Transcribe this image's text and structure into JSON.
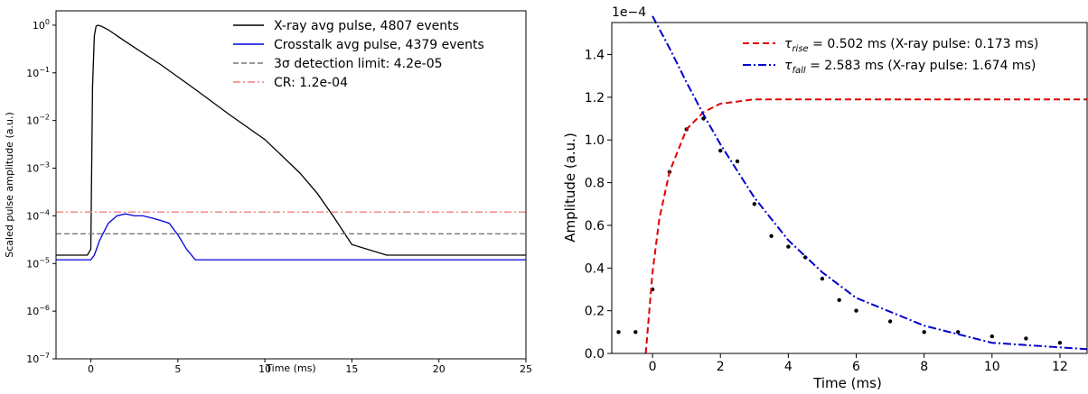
{
  "chart_data": [
    {
      "type": "line",
      "xlabel": "Time (ms)",
      "ylabel": "Scaled pulse amplitude (a.u.)",
      "xlim": [
        -2,
        25
      ],
      "ylim": [
        1e-07,
        2
      ],
      "yscale": "log",
      "grid": false,
      "legend_position": "top-right",
      "x_ticks": [
        "0",
        "5",
        "10",
        "15",
        "20",
        "25"
      ],
      "y_ticks": [
        "10^0",
        "10^-1",
        "10^-2",
        "10^-3",
        "10^-4",
        "10^-5",
        "10^-6",
        "10^-7"
      ],
      "series": [
        {
          "name": "X-ray avg pulse, 4807 events",
          "color": "#000000",
          "x": [
            -2,
            -0.2,
            0.0,
            0.1,
            0.2,
            0.3,
            0.4,
            0.6,
            1,
            2,
            4,
            6,
            8,
            10,
            12,
            13,
            14,
            15,
            17,
            20,
            25
          ],
          "y": [
            1.5e-05,
            1.5e-05,
            2e-05,
            0.05,
            0.6,
            0.95,
            1.0,
            0.95,
            0.8,
            0.45,
            0.15,
            0.045,
            0.013,
            0.004,
            0.0008,
            0.0003,
            9e-05,
            2.5e-05,
            1.5e-05,
            1.5e-05,
            1.5e-05
          ]
        },
        {
          "name": "Crosstalk avg pulse, 4379 events",
          "color": "#0000dd",
          "x": [
            -2,
            0.0,
            0.2,
            0.5,
            1.0,
            1.5,
            2.0,
            2.5,
            3.0,
            3.5,
            4.0,
            4.5,
            5.0,
            5.5,
            6.0,
            8,
            10,
            15,
            20,
            25
          ],
          "y": [
            1.2e-05,
            1.2e-05,
            1.5e-05,
            3e-05,
            7e-05,
            0.0001,
            0.00011,
            0.0001,
            0.0001,
            9e-05,
            8e-05,
            7e-05,
            4e-05,
            2e-05,
            1.2e-05,
            1.2e-05,
            1.2e-05,
            1.2e-05,
            1.2e-05,
            1.2e-05
          ]
        },
        {
          "name": "3σ detection limit: 4.2e-05",
          "color": "#777777",
          "y": 4.2e-05
        },
        {
          "name": "CR: 1.2e-04",
          "color": "#f08080",
          "y": 0.00012
        }
      ]
    },
    {
      "type": "scatter",
      "xlabel": "Time (ms)",
      "ylabel": "Amplitude (a.u.)",
      "offset_text": "1e−4",
      "xlim": [
        -1.2,
        12.8
      ],
      "ylim": [
        0,
        1.55
      ],
      "grid": false,
      "legend_position": "top-right",
      "x_ticks": [
        "0",
        "2",
        "4",
        "6",
        "8",
        "10",
        "12"
      ],
      "y_ticks": [
        "0.0",
        "0.2",
        "0.4",
        "0.6",
        "0.8",
        "1.0",
        "1.2",
        "1.4"
      ],
      "data_points": {
        "color": "#000000",
        "x": [
          -1.0,
          -0.5,
          0.0,
          0.5,
          1.0,
          1.5,
          2.0,
          2.5,
          3.0,
          3.5,
          4.0,
          4.5,
          5.0,
          5.5,
          6.0,
          7.0,
          8.0,
          9.0,
          10.0,
          11.0,
          12.0
        ],
        "y": [
          0.1,
          0.1,
          0.3,
          0.85,
          1.05,
          1.1,
          0.95,
          0.9,
          0.7,
          0.55,
          0.5,
          0.45,
          0.35,
          0.25,
          0.2,
          0.15,
          0.1,
          0.1,
          0.08,
          0.07,
          0.05
        ]
      },
      "series": [
        {
          "name": "τ_rise = 0.502 ms (X-ray pulse: 0.173 ms)",
          "label_parts": [
            "τ",
            "rise",
            " = 0.502 ms (X-ray pulse: 0.173 ms)"
          ],
          "color": "#e00000",
          "x": [
            -0.2,
            0.0,
            0.2,
            0.5,
            1.0,
            1.5,
            2.0,
            3.0,
            4.0,
            6.0,
            12.8
          ],
          "y": [
            0.0,
            0.38,
            0.63,
            0.85,
            1.05,
            1.13,
            1.17,
            1.19,
            1.19,
            1.19,
            1.19
          ]
        },
        {
          "name": "τ_fall = 2.583 ms (X-ray pulse: 1.674 ms)",
          "label_parts": [
            "τ",
            "fall",
            " = 2.583 ms (X-ray pulse: 1.674 ms)"
          ],
          "color": "#0000cc",
          "x": [
            0.0,
            0.5,
            1.0,
            1.5,
            2.0,
            3.0,
            4.0,
            5.0,
            6.0,
            8.0,
            10.0,
            12.8
          ],
          "y": [
            1.58,
            1.43,
            1.27,
            1.12,
            0.98,
            0.73,
            0.53,
            0.38,
            0.26,
            0.13,
            0.05,
            0.02
          ]
        }
      ]
    }
  ]
}
